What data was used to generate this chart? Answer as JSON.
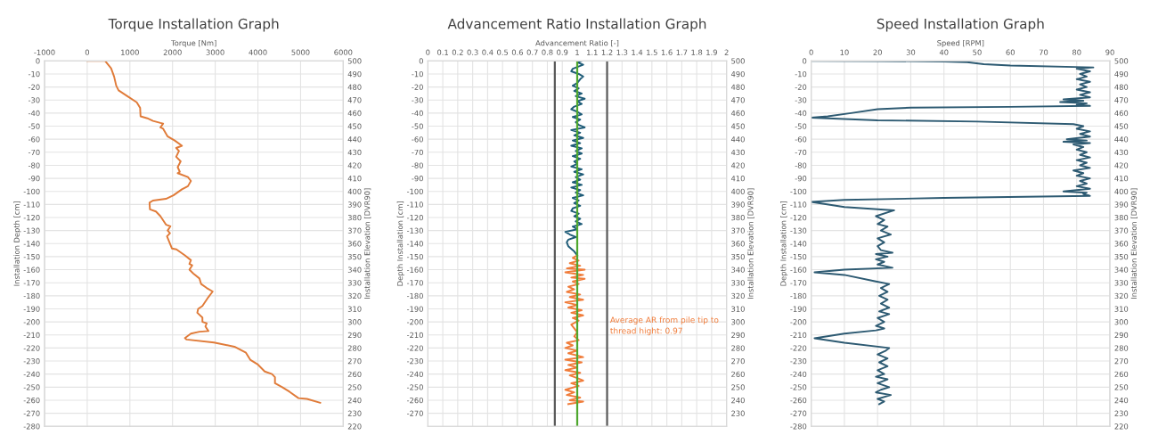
{
  "chart_data": [
    {
      "type": "line",
      "title": "Torque Installation Graph",
      "xlabel": "Torque [Nm]",
      "ylabel": "Installation Depth [cm]",
      "y2label": "Installation Elevation [DVR90]",
      "xlim": [
        -1000,
        6000
      ],
      "xticks": [
        -1000,
        0,
        1000,
        2000,
        3000,
        4000,
        5000,
        6000
      ],
      "ylim": [
        -280,
        0
      ],
      "yticks": [
        0,
        -10,
        -20,
        -30,
        -40,
        -50,
        -60,
        -70,
        -80,
        -90,
        -100,
        -110,
        -120,
        -130,
        -140,
        -150,
        -160,
        -170,
        -180,
        -190,
        -200,
        -210,
        -220,
        -230,
        -240,
        -250,
        -260,
        -270,
        -280
      ],
      "y2lim": [
        220,
        500
      ],
      "y2ticks": [
        500,
        490,
        480,
        470,
        460,
        450,
        440,
        430,
        420,
        410,
        400,
        390,
        380,
        370,
        360,
        350,
        340,
        330,
        320,
        310,
        300,
        290,
        280,
        270,
        260,
        250,
        240,
        230,
        220
      ],
      "grid": true,
      "series": [
        {
          "color": "#e07b39",
          "x": [
            0,
            420,
            560,
            630,
            680,
            735,
            940,
            1160,
            1240,
            1250,
            1410,
            1540,
            1715,
            1780,
            1715,
            1780,
            1880,
            2050,
            2220,
            2085,
            2150,
            2085,
            2190,
            2120,
            2170,
            2120,
            2360,
            2430,
            2360,
            2220,
            2020,
            1845,
            1540,
            1460,
            1470,
            1610,
            1715,
            1850,
            1950,
            1885,
            1940,
            1870,
            1985,
            2090,
            2290,
            2430,
            2395,
            2460,
            2395,
            2490,
            2630,
            2670,
            2800,
            2940,
            2840,
            2700,
            2600,
            2580,
            2700,
            2700,
            2800,
            2770,
            2840,
            2630,
            2430,
            2290,
            2330,
            2970,
            3450,
            3720,
            3820,
            3990,
            4160,
            4330,
            4400,
            4400,
            4570,
            4740,
            4950,
            5150,
            5460
          ],
          "values": [
            0,
            0,
            -5.7,
            -12,
            -19,
            -22.6,
            -27,
            -31.7,
            -36,
            -42.5,
            -44,
            -46,
            -47.5,
            -48,
            -51,
            -52,
            -57.7,
            -61,
            -65,
            -66.7,
            -69,
            -73.5,
            -77,
            -81.4,
            -85,
            -86,
            -89,
            -92,
            -96,
            -98.4,
            -103,
            -105.7,
            -107,
            -108.6,
            -113.8,
            -115.4,
            -119,
            -125.6,
            -126.7,
            -130,
            -132,
            -134.4,
            -143.7,
            -144.4,
            -149,
            -152.7,
            -155.6,
            -156.7,
            -160,
            -163,
            -166.7,
            -171,
            -174,
            -176.7,
            -181,
            -187.8,
            -190,
            -193,
            -196.7,
            -200,
            -201,
            -203.5,
            -207,
            -207.5,
            -209,
            -212.4,
            -213.5,
            -215.8,
            -219,
            -223.6,
            -229,
            -232.4,
            -238,
            -240,
            -242.4,
            -247,
            -250,
            -253.5,
            -258.4,
            -259,
            -262
          ]
        }
      ]
    },
    {
      "type": "line",
      "title": "Advancement Ratio Installation Graph",
      "xlabel": "Advancement Ratio [-]",
      "ylabel": "Depth Installation [cm]",
      "y2label": "Installation Elevation [DVR90]",
      "xlim": [
        0,
        2
      ],
      "xticks": [
        0,
        0.1,
        0.2,
        0.3,
        0.4,
        0.5,
        0.6,
        0.7,
        0.8,
        0.9,
        1,
        1.1,
        1.2,
        1.3,
        1.4,
        1.5,
        1.6,
        1.7,
        1.8,
        1.9,
        2
      ],
      "ylim": [
        -280,
        0
      ],
      "yticks": [
        0,
        -10,
        -20,
        -30,
        -40,
        -50,
        -60,
        -70,
        -80,
        -90,
        -100,
        -110,
        -120,
        -130,
        -140,
        -150,
        -160,
        -170,
        -180,
        -190,
        -200,
        -210,
        -220,
        -230,
        -240,
        -250,
        -260,
        -270
      ],
      "y2lim": [
        220,
        500
      ],
      "y2ticks": [
        500,
        490,
        480,
        470,
        460,
        450,
        440,
        430,
        420,
        410,
        400,
        390,
        380,
        370,
        360,
        350,
        340,
        330,
        320,
        310,
        300,
        290,
        280,
        270,
        260,
        250,
        240,
        230
      ],
      "grid": true,
      "ref_lines": [
        {
          "axis": "x",
          "value": 0.85,
          "color": "#595959"
        },
        {
          "axis": "x",
          "value": 1.2,
          "color": "#595959"
        },
        {
          "axis": "x",
          "value": 1,
          "color": "#4ea72e"
        }
      ],
      "annotations": [
        "Average AR from pile tip to\nthread hight: 0.97"
      ],
      "series": [
        {
          "color": "#1f5c78",
          "x": [
            1.03,
            1.0,
            1.04,
            0.97,
            0.96,
            1.01,
            1.04,
            1.02,
            1.0,
            0.97,
            1.01,
            0.98,
            1.03,
            0.99,
            1.05,
            1.0,
            1.03,
            0.98,
            0.96,
            1.0,
            1.03,
            0.97,
            1.02,
            0.99,
            1.01,
            1.05,
            0.96,
            1.02,
            0.98,
            1.04,
            0.97,
            1.02,
            0.96,
            1.03,
            0.99,
            1.03,
            0.97,
            1.02,
            0.98,
            1.0,
            0.96,
            1.03,
            0.98,
            1.04,
            0.99,
            1.02,
            0.97,
            1.03,
            0.96,
            1.02,
            0.99,
            1.04,
            0.97,
            1.01,
            0.98,
            1.02,
            0.97,
            0.96,
            1.01,
            0.98,
            1.02,
            0.99,
            1.03,
            0.97,
            1.0,
            0.92,
            0.95,
            0.99,
            0.94,
            0.93,
            0.94,
            0.98,
            1.0
          ],
          "values": [
            0,
            -1,
            -3,
            -6,
            -8,
            -10,
            -12,
            -14,
            -17,
            -19,
            -21,
            -23,
            -25,
            -27,
            -29,
            -31,
            -33,
            -35,
            -37,
            -39,
            -41,
            -43,
            -45,
            -47,
            -49,
            -51,
            -53,
            -55,
            -57,
            -59,
            -61,
            -63,
            -65,
            -67,
            -69,
            -71,
            -73,
            -75,
            -77,
            -79,
            -81,
            -83,
            -85,
            -87,
            -89,
            -91,
            -93,
            -95,
            -97,
            -99,
            -101,
            -103,
            -105,
            -107,
            -109,
            -111,
            -113,
            -115,
            -117,
            -119,
            -121,
            -123,
            -125,
            -127,
            -129,
            -131,
            -133,
            -135,
            -137,
            -139,
            -142,
            -146,
            -149
          ]
        },
        {
          "color": "#f07c3a",
          "x": [
            1.0,
            0.97,
            1.01,
            0.95,
            1.02,
            0.93,
            1.05,
            0.92,
            1.04,
            0.96,
            1.05,
            0.97,
            1.01,
            0.94,
            0.98,
            0.93,
            1.02,
            0.95,
            1.04,
            0.92,
            1.0,
            0.94,
            1.03,
            0.96,
            1.04,
            0.97,
            1.01,
            0.96,
            0.98,
            1.0,
            0.98,
            1.01,
            0.93,
            0.97,
            0.92,
            1.0,
            0.94,
            1.04,
            0.92,
            1.03,
            0.94,
            1.0,
            0.92,
            1.02,
            0.95,
            1.0,
            1.04,
            0.96,
            1.01,
            0.92,
            0.98,
            0.93,
            1.02,
            0.95,
            1.04,
            0.94
          ],
          "values": [
            -149,
            -151,
            -153,
            -155,
            -157,
            -159,
            -160,
            -162,
            -164,
            -166,
            -167,
            -169,
            -171,
            -173,
            -175,
            -177,
            -179,
            -181,
            -183,
            -185,
            -187,
            -189,
            -191,
            -193,
            -195,
            -197,
            -199,
            -202,
            -205,
            -208,
            -211,
            -214,
            -216,
            -218,
            -220,
            -222,
            -224,
            -227,
            -229,
            -231,
            -233,
            -235,
            -237,
            -239,
            -241,
            -243,
            -245,
            -247,
            -249,
            -252,
            -254,
            -256,
            -258,
            -260,
            -261,
            -263
          ]
        }
      ]
    },
    {
      "type": "line",
      "title": "Speed Installation Graph",
      "xlabel": "Speed [RPM]",
      "ylabel": "Depth Installation [cm]",
      "y2label": "Installation Elevation [DVR90]",
      "xlim": [
        0,
        90
      ],
      "xticks": [
        0,
        10,
        20,
        30,
        40,
        50,
        60,
        70,
        80,
        90
      ],
      "ylim": [
        -280,
        0
      ],
      "yticks": [
        0,
        -10,
        -20,
        -30,
        -40,
        -50,
        -60,
        -70,
        -80,
        -90,
        -100,
        -110,
        -120,
        -130,
        -140,
        -150,
        -160,
        -170,
        -180,
        -190,
        -200,
        -210,
        -220,
        -230,
        -240,
        -250,
        -260,
        -270,
        -280
      ],
      "y2lim": [
        220,
        500
      ],
      "y2ticks": [
        500,
        490,
        480,
        470,
        460,
        450,
        440,
        430,
        420,
        410,
        400,
        390,
        380,
        370,
        360,
        350,
        340,
        330,
        320,
        310,
        300,
        290,
        280,
        270,
        260,
        250,
        240,
        230,
        220
      ],
      "grid": true,
      "series": [
        {
          "color": "#2d5a72",
          "x": [
            0,
            20,
            40,
            47,
            52,
            60,
            85,
            80,
            84,
            81,
            83,
            80,
            84,
            81,
            83,
            80,
            84,
            81,
            84,
            76,
            82,
            75,
            83,
            80,
            84,
            60,
            30,
            20,
            12,
            5,
            0,
            20,
            50,
            79,
            82,
            80,
            84,
            81,
            84,
            77,
            83,
            76,
            84,
            79,
            82,
            80,
            83,
            81,
            84,
            80,
            83,
            81,
            84,
            79,
            82,
            80,
            84,
            81,
            83,
            80,
            84,
            76,
            83,
            82,
            84,
            40,
            10,
            0,
            10,
            19,
            25,
            19.5,
            22,
            20,
            23,
            21,
            24,
            20,
            22,
            20,
            21,
            24.5,
            19.5,
            23,
            19.5,
            22,
            20,
            24.5,
            10,
            1,
            10,
            19.5,
            23.5,
            21,
            23,
            20.5,
            23,
            21,
            23.5,
            20.5,
            23.5,
            20,
            22,
            19.5,
            22,
            19.5,
            10,
            1,
            10,
            23.5,
            22.5,
            20,
            23,
            20.5,
            23,
            20,
            22,
            19.5,
            23,
            20,
            23.5,
            21,
            19.5,
            24,
            20,
            22,
            20.5
          ],
          "values": [
            0,
            -0.1,
            -0.4,
            -1,
            -2.5,
            -3.5,
            -5,
            -6,
            -8,
            -10,
            -12,
            -14,
            -16,
            -18,
            -20,
            -22,
            -24,
            -26,
            -28,
            -29.5,
            -30.5,
            -31.5,
            -32.5,
            -33.5,
            -34.5,
            -35.2,
            -35.8,
            -37,
            -40,
            -42.5,
            -43.5,
            -45.5,
            -46.5,
            -48.5,
            -50,
            -52,
            -54,
            -56,
            -58,
            -60,
            -61,
            -62,
            -63,
            -64,
            -66,
            -68,
            -70,
            -72,
            -74,
            -76,
            -78,
            -80,
            -82,
            -84,
            -86,
            -88,
            -90,
            -92,
            -94,
            -96,
            -98,
            -100,
            -101,
            -102,
            -103.5,
            -105,
            -106.5,
            -108,
            -112,
            -113.5,
            -114.5,
            -119,
            -122,
            -125,
            -127,
            -130,
            -133,
            -136,
            -139,
            -142,
            -145,
            -147,
            -148,
            -150,
            -152,
            -154,
            -156,
            -158.5,
            -160,
            -162,
            -164,
            -169,
            -171,
            -174,
            -177,
            -180,
            -183,
            -186,
            -189,
            -192,
            -194,
            -197,
            -200,
            -203,
            -205,
            -206.5,
            -209,
            -212.5,
            -216,
            -220,
            -222,
            -225,
            -228,
            -231,
            -234,
            -237,
            -240,
            -242,
            -244,
            -247,
            -250,
            -252,
            -254,
            -256,
            -259,
            -261,
            -263
          ]
        }
      ]
    }
  ]
}
